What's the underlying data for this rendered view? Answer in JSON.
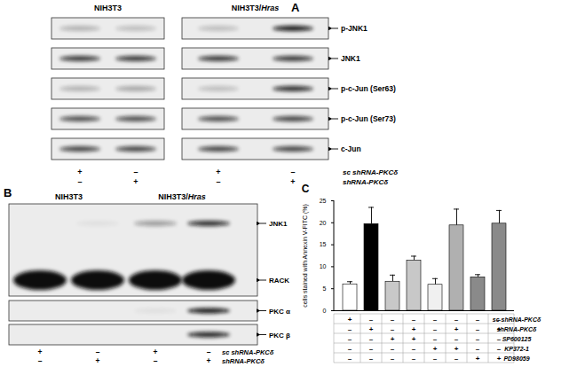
{
  "panel_A": {
    "panel": "A",
    "cell_lines": [
      "NIH3T3",
      "NIH3T3/Hras"
    ],
    "blots": [
      {
        "name": "p-JNK1",
        "signal": [
          0.25,
          0.2,
          0.2,
          0.95
        ]
      },
      {
        "name": "JNK1",
        "signal": [
          0.8,
          0.8,
          0.8,
          0.8
        ]
      },
      {
        "name": "p-c-Jun (Ser63)",
        "signal": [
          0.25,
          0.3,
          0.2,
          0.85
        ]
      },
      {
        "name": "p-c-Jun (Ser73)",
        "signal": [
          0.7,
          0.7,
          0.7,
          0.75
        ]
      },
      {
        "name": "c-Jun",
        "signal": [
          0.75,
          0.75,
          0.75,
          0.75
        ]
      }
    ],
    "conditions": [
      {
        "name": "sc shRNA-PKCδ",
        "values": [
          "+",
          "–",
          "+",
          "–"
        ]
      },
      {
        "name": "shRNA-PKCδ",
        "values": [
          "–",
          "+",
          "–",
          "+"
        ]
      }
    ]
  },
  "panel_B": {
    "panel": "B",
    "cell_lines": [
      "NIH3T3",
      "NIH3T3/Hras"
    ],
    "boxes": [
      {
        "bands": [
          {
            "name": "JNK1",
            "signal": [
              0.0,
              0.05,
              0.35,
              0.85
            ]
          },
          {
            "name": "RACK",
            "signal": [
              1.0,
              1.0,
              1.0,
              1.0
            ]
          }
        ]
      },
      {
        "bands": [
          {
            "name": "PKC α",
            "signal": [
              0.0,
              0.0,
              0.05,
              0.95
            ]
          }
        ]
      },
      {
        "bands": [
          {
            "name": "PKC β",
            "signal": [
              0.0,
              0.0,
              0.0,
              0.9
            ]
          }
        ]
      }
    ],
    "conditions": [
      {
        "name": "sc shRNA-PKCδ",
        "values": [
          "+",
          "–",
          "+",
          "–"
        ]
      },
      {
        "name": "shRNA-PKCδ",
        "values": [
          "–",
          "+",
          "–",
          "+"
        ]
      }
    ]
  },
  "chart_data": {
    "panel": "C",
    "type": "bar",
    "ylabel": "cells stained with Annexin V-FITC (%)",
    "categories": [
      null,
      null,
      null,
      null,
      null,
      null,
      null,
      null
    ],
    "values": [
      6.0,
      19.7,
      6.6,
      11.4,
      5.9,
      19.4,
      7.6,
      19.8
    ],
    "errors": [
      0.6,
      3.8,
      1.5,
      1.0,
      1.4,
      3.7,
      0.6,
      3.0
    ],
    "colors": [
      "#ffffff",
      "#000000",
      "#c8c8c8",
      "#c8c8c8",
      "#f0f0f0",
      "#b0b0b0",
      "#8a8a8a",
      "#8a8a8a"
    ],
    "ylim": [
      0,
      25
    ],
    "yticks": [
      0,
      5,
      10,
      15,
      20,
      25
    ],
    "tick_labels": "y",
    "treatments": [
      {
        "name": "sc shRNA-PKCδ",
        "values": [
          "+",
          "–",
          "–",
          "–",
          "–",
          "–",
          "–",
          "–"
        ]
      },
      {
        "name": "shRNA-PKCδ",
        "values": [
          "–",
          "+",
          "–",
          "+",
          "–",
          "+",
          "–",
          "+"
        ]
      },
      {
        "name": "SP600125",
        "values": [
          "–",
          "–",
          "+",
          "+",
          "–",
          "–",
          "–",
          "–"
        ]
      },
      {
        "name": "KP372-1",
        "values": [
          "–",
          "–",
          "–",
          "–",
          "+",
          "+",
          "–",
          "–"
        ]
      },
      {
        "name": "PD98059",
        "values": [
          "–",
          "–",
          "–",
          "–",
          "–",
          "–",
          "+",
          "+"
        ]
      }
    ]
  }
}
